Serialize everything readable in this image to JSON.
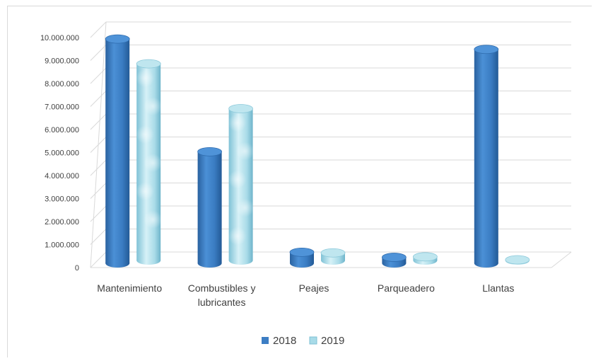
{
  "chart_data": {
    "type": "bar",
    "title": "",
    "xlabel": "",
    "ylabel": "",
    "ylim": [
      0,
      10000000
    ],
    "yticks": [
      0,
      1000000,
      2000000,
      3000000,
      4000000,
      5000000,
      6000000,
      7000000,
      8000000,
      9000000,
      10000000
    ],
    "ytick_labels": [
      "0",
      "1.000.000",
      "2.000.000",
      "3.000.000",
      "4.000.000",
      "5.000.000",
      "6.000.000",
      "7.000.000",
      "8.000.000",
      "9.000.000",
      "10.000.000"
    ],
    "categories": [
      [
        "Mantenimiento"
      ],
      [
        "Combustibles y",
        "lubricantes"
      ],
      [
        "Peajes"
      ],
      [
        "Parqueadero"
      ],
      [
        "Llantas"
      ]
    ],
    "series": [
      {
        "name": "2018",
        "values": [
          9750000,
          4850000,
          480000,
          260000,
          9300000
        ],
        "color": "#3d7ec4"
      },
      {
        "name": "2019",
        "values": [
          8550000,
          6600000,
          330000,
          160000,
          30000
        ],
        "color": "#9fd6e6"
      }
    ],
    "grid": true,
    "legend_position": "bottom",
    "style": "3d-cylinder"
  }
}
